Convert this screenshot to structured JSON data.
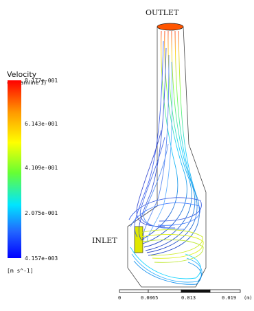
{
  "legend": {
    "title": "Velocity",
    "subtitle": "(Streamline 1)",
    "ticks": [
      "8.177e-001",
      "6.143e-001",
      "4.109e-001",
      "2.075e-001",
      "4.157e-003"
    ],
    "units": "[m s^-1]",
    "colors": [
      "#ff0000",
      "#ffff00",
      "#00ff00",
      "#00e5ff",
      "#0000ff"
    ]
  },
  "labels": {
    "outlet": "OUTLET",
    "inlet": "INLET"
  },
  "scale": {
    "ticks": [
      "0",
      "0.0065",
      "0.013",
      "0.019"
    ],
    "unit": "(m)"
  }
}
